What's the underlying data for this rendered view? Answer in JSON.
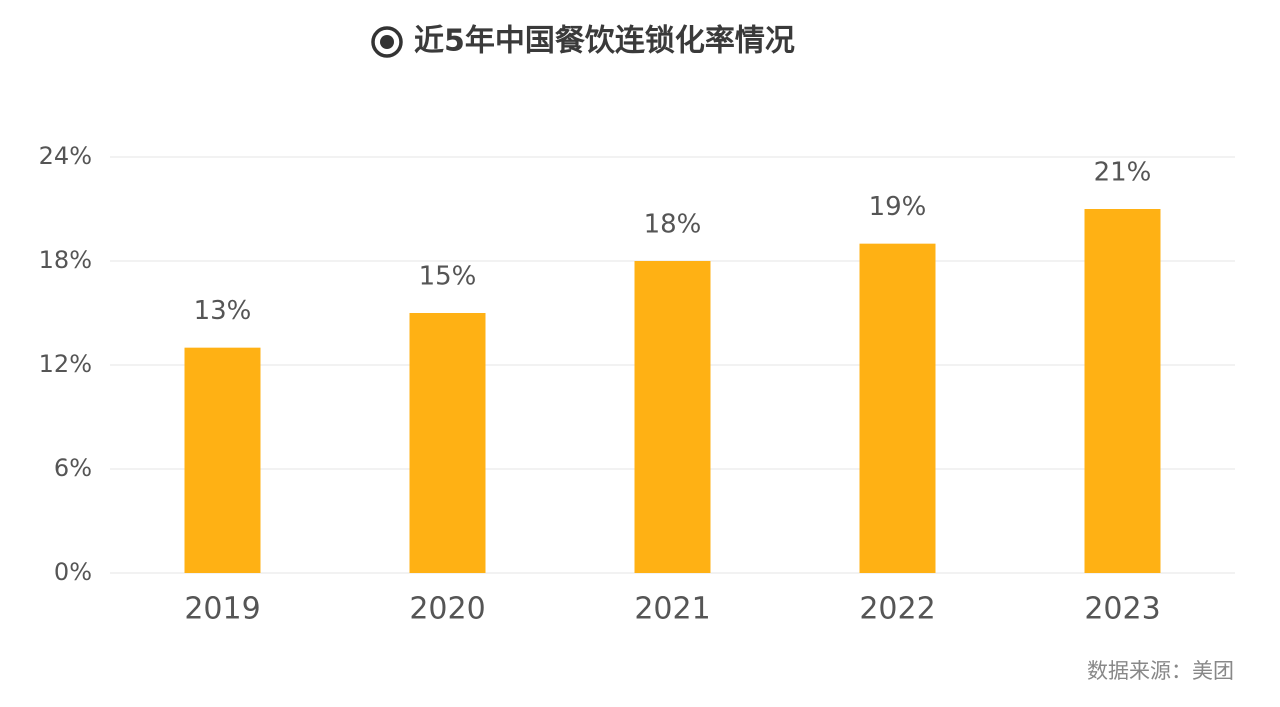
{
  "chart_data": {
    "type": "bar",
    "title": "近5年中国餐饮连锁化率情况",
    "categories": [
      "2019",
      "2020",
      "2021",
      "2022",
      "2023"
    ],
    "values": [
      13,
      15,
      18,
      19,
      21
    ],
    "value_labels": [
      "13%",
      "15%",
      "18%",
      "19%",
      "21%"
    ],
    "color": "#ffb114",
    "ylim": [
      0,
      24
    ],
    "yticks": [
      {
        "value": 0,
        "label": "0%"
      },
      {
        "value": 6,
        "label": "6%"
      },
      {
        "value": 12,
        "label": "12%"
      },
      {
        "value": 18,
        "label": "18%"
      },
      {
        "value": 24,
        "label": "24%"
      }
    ],
    "grid": true,
    "source": "数据来源：美团"
  }
}
